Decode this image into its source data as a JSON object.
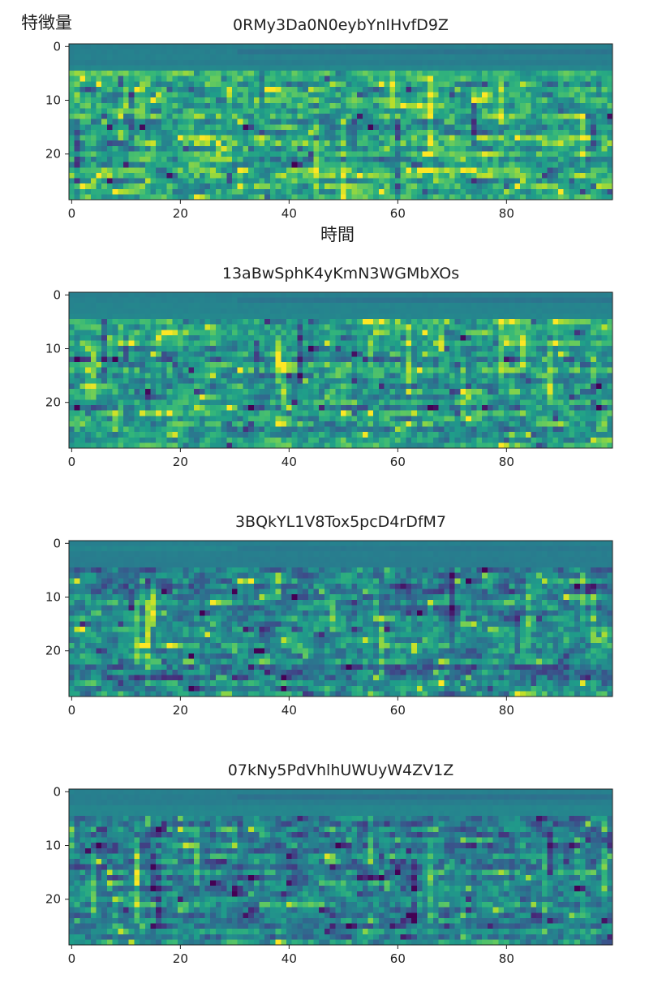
{
  "figure": {
    "ylabel": "特徴量",
    "xlabel": "時間"
  },
  "chart_data": [
    {
      "type": "heatmap",
      "title": "0RMy3Da0N0eybYnIHvfD9Z",
      "rows": 29,
      "cols": 100,
      "xlim": [
        0,
        100
      ],
      "ylim": [
        29,
        0
      ],
      "xticks": [
        "0",
        "20",
        "40",
        "60",
        "80"
      ],
      "yticks": [
        "0",
        "10",
        "20"
      ],
      "colormap": "viridis",
      "seed": 11,
      "bright": 0.62
    },
    {
      "type": "heatmap",
      "title": "13aBwSphK4yKmN3WGMbXOs",
      "rows": 29,
      "cols": 100,
      "xlim": [
        0,
        100
      ],
      "ylim": [
        29,
        0
      ],
      "xticks": [
        "0",
        "20",
        "40",
        "60",
        "80"
      ],
      "yticks": [
        "0",
        "10",
        "20"
      ],
      "colormap": "viridis",
      "seed": 23,
      "bright": 0.56
    },
    {
      "type": "heatmap",
      "title": "3BQkYL1V8Tox5pcD4rDfM7",
      "rows": 29,
      "cols": 100,
      "xlim": [
        0,
        100
      ],
      "ylim": [
        29,
        0
      ],
      "xticks": [
        "0",
        "20",
        "40",
        "60",
        "80"
      ],
      "yticks": [
        "0",
        "10",
        "20"
      ],
      "colormap": "viridis",
      "seed": 37,
      "bright": 0.45
    },
    {
      "type": "heatmap",
      "title": "07kNy5PdVhlhUWUyW4ZV1Z",
      "rows": 29,
      "cols": 100,
      "xlim": [
        0,
        100
      ],
      "ylim": [
        29,
        0
      ],
      "xticks": [
        "0",
        "20",
        "40",
        "60",
        "80"
      ],
      "yticks": [
        "0",
        "10",
        "20"
      ],
      "colormap": "viridis",
      "seed": 53,
      "bright": 0.48
    }
  ]
}
